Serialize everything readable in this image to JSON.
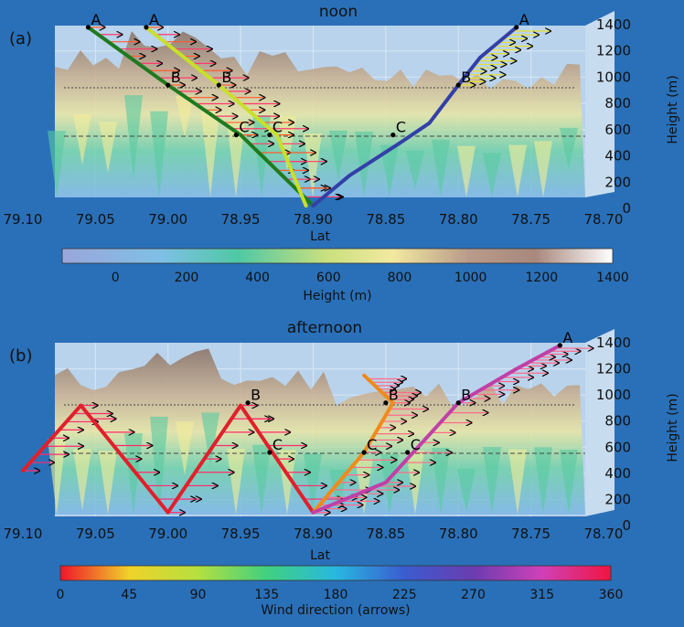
{
  "colors": {
    "background": "#2a70b8",
    "panel": "#b9d3ec"
  },
  "chart_data": [
    {
      "type": "line",
      "panel_label": "(a)",
      "title": "noon",
      "xlabel": "Lat",
      "ylabel": "Height (m)",
      "x_ticks": [
        "79.10",
        "79.05",
        "79.00",
        "78.95",
        "78.90",
        "78.85",
        "78.80",
        "78.75",
        "78.70"
      ],
      "y_ticks": [
        "0",
        "200",
        "400",
        "600",
        "800",
        "1000",
        "1200",
        "1400"
      ],
      "xlim": [
        79.1,
        78.7
      ],
      "ylim": [
        0,
        1400
      ],
      "colorbar": {
        "label": "Height (m)",
        "ticks": [
          "0",
          "200",
          "400",
          "600",
          "800",
          "1000",
          "1200",
          "1400"
        ],
        "range": [
          -150,
          1400
        ]
      },
      "series": [
        {
          "name": "trajectory-green",
          "color": "#1f7a1f",
          "x": [
            79.055,
            79.0,
            78.95,
            78.9
          ],
          "y": [
            1380,
            940,
            560,
            20
          ],
          "points": [
            {
              "label": "A",
              "x": 79.055,
              "y": 1380
            },
            {
              "label": "B",
              "x": 79.0,
              "y": 940
            },
            {
              "label": "C",
              "x": 78.953,
              "y": 560
            }
          ]
        },
        {
          "name": "trajectory-yellow-green",
          "color": "#c8e02a",
          "x": [
            79.015,
            78.965,
            78.925,
            78.905
          ],
          "y": [
            1380,
            940,
            560,
            20
          ],
          "points": [
            {
              "label": "A",
              "x": 79.015,
              "y": 1380
            },
            {
              "label": "B",
              "x": 78.965,
              "y": 940
            },
            {
              "label": "C",
              "x": 78.93,
              "y": 560
            }
          ]
        },
        {
          "name": "trajectory-blue",
          "color": "#3340a8",
          "x": [
            78.9,
            78.875,
            78.84,
            78.82,
            78.8,
            78.785,
            78.76
          ],
          "y": [
            20,
            250,
            500,
            650,
            940,
            1150,
            1380
          ],
          "points": [
            {
              "label": "A",
              "x": 78.76,
              "y": 1380
            },
            {
              "label": "B",
              "x": 78.8,
              "y": 940
            },
            {
              "label": "C",
              "x": 78.845,
              "y": 560
            }
          ]
        }
      ]
    },
    {
      "type": "line",
      "panel_label": "(b)",
      "title": "afternoon",
      "xlabel": "Lat",
      "ylabel": "Height (m)",
      "x_ticks": [
        "79.10",
        "79.05",
        "79.00",
        "78.95",
        "78.90",
        "78.85",
        "78.80",
        "78.75",
        "78.70"
      ],
      "y_ticks": [
        "0",
        "200",
        "400",
        "600",
        "800",
        "1000",
        "1200",
        "1400"
      ],
      "xlim": [
        79.1,
        78.7
      ],
      "ylim": [
        0,
        1400
      ],
      "colorbar": {
        "label": "Wind direction (arrows)",
        "ticks": [
          "0",
          "45",
          "90",
          "135",
          "180",
          "225",
          "270",
          "315",
          "360"
        ],
        "range": [
          0,
          360
        ]
      },
      "series": [
        {
          "name": "trajectory-red",
          "color": "#e0202a",
          "x": [
            79.1,
            79.06,
            79.0,
            78.95,
            78.9
          ],
          "y": [
            420,
            920,
            100,
            920,
            100
          ],
          "points": [
            {
              "label": "B",
              "x": 78.945,
              "y": 940
            },
            {
              "label": "C",
              "x": 78.93,
              "y": 560
            }
          ]
        },
        {
          "name": "trajectory-orange",
          "color": "#f08a1a",
          "x": [
            78.9,
            78.865,
            78.845,
            78.865
          ],
          "y": [
            100,
            560,
            940,
            1150
          ],
          "points": [
            {
              "label": "B",
              "x": 78.85,
              "y": 940
            },
            {
              "label": "C",
              "x": 78.865,
              "y": 560
            }
          ]
        },
        {
          "name": "trajectory-magenta",
          "color": "#c040a8",
          "x": [
            78.9,
            78.85,
            78.8,
            78.76,
            78.73
          ],
          "y": [
            100,
            330,
            940,
            1200,
            1380
          ],
          "points": [
            {
              "label": "A",
              "x": 78.73,
              "y": 1380
            },
            {
              "label": "B",
              "x": 78.8,
              "y": 940
            },
            {
              "label": "C",
              "x": 78.835,
              "y": 560
            }
          ]
        }
      ]
    }
  ]
}
